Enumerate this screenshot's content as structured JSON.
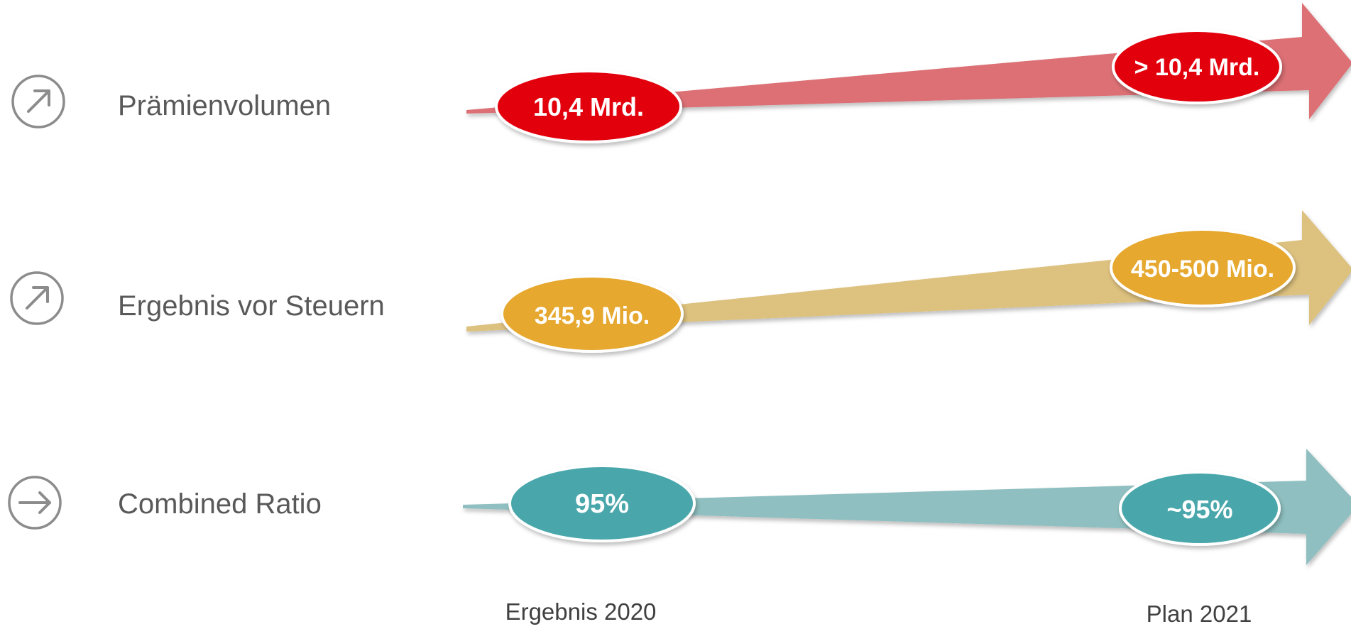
{
  "rows": [
    {
      "label": "Prämienvolumen",
      "icon": "arrow-up-right-icon",
      "value_2020": "10,4 Mrd.",
      "value_2021": "> 10,4 Mrd.",
      "arrow_color": "#dc6f75",
      "ellipse_color": "#e3000f"
    },
    {
      "label": "Ergebnis vor Steuern",
      "icon": "arrow-up-right-icon",
      "value_2020": "345,9 Mio.",
      "value_2021": "450-500 Mio.",
      "arrow_color": "#ddc17e",
      "ellipse_color": "#e6a82d"
    },
    {
      "label": "Combined Ratio",
      "icon": "arrow-right-icon",
      "value_2020": "95%",
      "value_2021": "~95%",
      "arrow_color": "#8fbfc0",
      "ellipse_color": "#48a7ab"
    }
  ],
  "columns": {
    "result_2020": "Ergebnis 2020",
    "plan_2021": "Plan 2021"
  }
}
